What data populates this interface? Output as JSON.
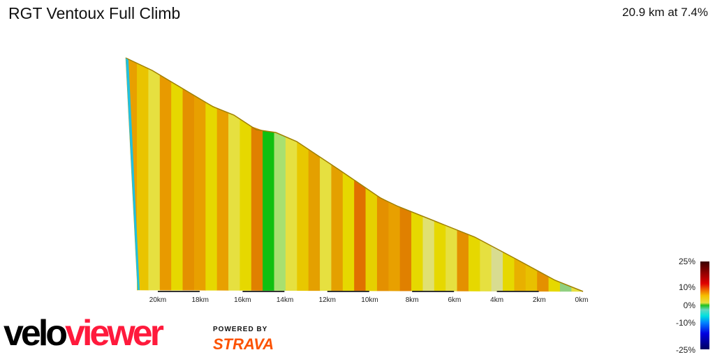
{
  "header": {
    "title": "RGT Ventoux Full Climb",
    "summary": "20.9 km at 7.4%"
  },
  "chart_data": {
    "type": "area",
    "title": "RGT Ventoux Full Climb",
    "x_ticks": [
      "20km",
      "18km",
      "16km",
      "14km",
      "12km",
      "10km",
      "8km",
      "6km",
      "4km",
      "2km",
      "0km"
    ],
    "xlim": [
      20.9,
      0
    ],
    "distance_km": 20.9,
    "avg_gradient_pct": 7.4,
    "legend": {
      "labels": [
        "25%",
        "10%",
        "0%",
        "-10%",
        "-25%"
      ]
    },
    "strip_colors": [
      "#e8a000",
      "#e9c400",
      "#e6e040",
      "#e89a00",
      "#e6d800",
      "#e49000",
      "#e8a000",
      "#e6d800",
      "#e8a000",
      "#e6e040",
      "#e6d800",
      "#e08000",
      "#10c010",
      "#a8e070",
      "#e6e040",
      "#e8c800",
      "#e4a000",
      "#e6e040",
      "#e4a000",
      "#e6d800",
      "#e07000",
      "#e6d000",
      "#e49000",
      "#e8a000",
      "#e08000",
      "#e6d800",
      "#e0e070",
      "#e6d800",
      "#e6e040",
      "#e49000",
      "#e6d800",
      "#e6e040",
      "#d8dc90",
      "#e6d800",
      "#e8b000",
      "#e8c000",
      "#e49000",
      "#e6d800",
      "#90d080",
      "#e6e040"
    ]
  },
  "branding": {
    "logo_a": "velo",
    "logo_b": "viewer",
    "powered": "POWERED BY",
    "strava": "STRAVA"
  }
}
